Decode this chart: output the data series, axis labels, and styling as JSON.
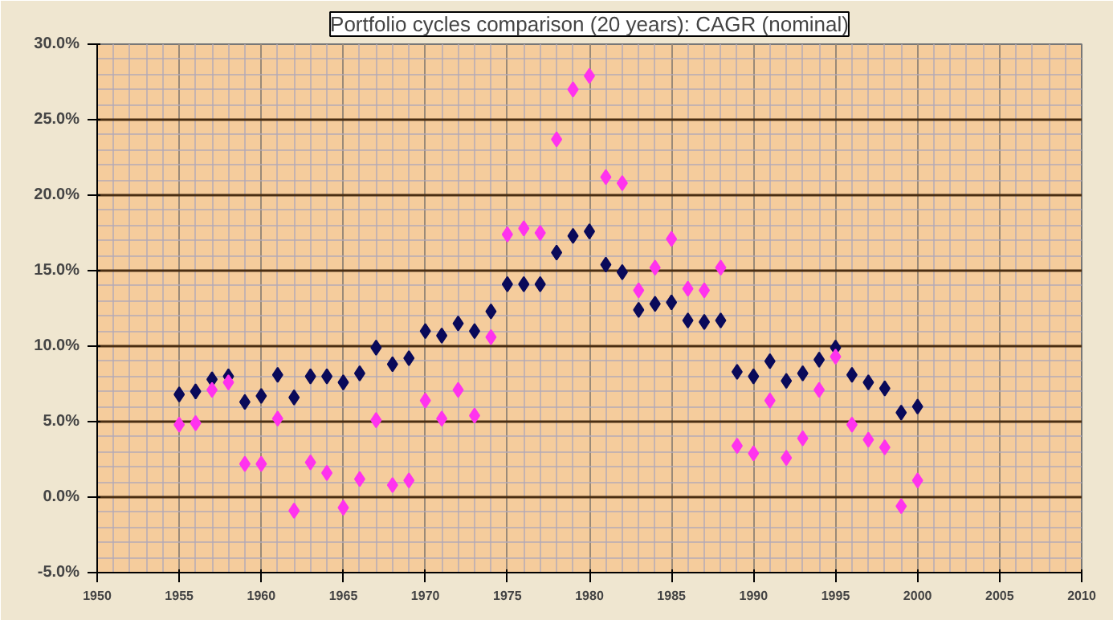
{
  "chart_data": {
    "type": "scatter",
    "title": "Portfolio cycles comparison (20 years): CAGR (nominal)",
    "x": [
      1955,
      1956,
      1957,
      1958,
      1959,
      1960,
      1961,
      1962,
      1963,
      1964,
      1965,
      1966,
      1967,
      1968,
      1969,
      1970,
      1971,
      1972,
      1973,
      1974,
      1975,
      1976,
      1977,
      1978,
      1979,
      1980,
      1981,
      1982,
      1983,
      1984,
      1985,
      1986,
      1987,
      1988,
      1989,
      1990,
      1991,
      1992,
      1993,
      1994,
      1995,
      1996,
      1997,
      1998,
      1999,
      2000
    ],
    "series": [
      {
        "color": "#0a0a5a",
        "values": [
          6.8,
          7.0,
          7.8,
          8.0,
          6.3,
          6.7,
          8.1,
          6.6,
          8.0,
          8.0,
          7.6,
          8.2,
          9.9,
          8.8,
          9.2,
          11.0,
          10.7,
          11.5,
          11.0,
          12.3,
          14.1,
          14.1,
          14.1,
          16.2,
          17.3,
          17.6,
          15.4,
          14.9,
          12.4,
          12.8,
          12.9,
          11.7,
          11.6,
          11.7,
          8.3,
          8.0,
          9.0,
          7.7,
          8.2,
          9.1,
          9.9,
          8.1,
          7.6,
          7.2,
          5.6,
          6.0
        ]
      },
      {
        "color": "#ff33ee",
        "values": [
          4.8,
          4.9,
          7.1,
          7.6,
          2.2,
          2.2,
          5.2,
          -0.9,
          2.3,
          1.6,
          -0.7,
          1.2,
          5.1,
          0.8,
          1.1,
          6.4,
          5.2,
          7.1,
          5.4,
          10.6,
          17.4,
          17.8,
          17.5,
          23.7,
          27.0,
          27.9,
          21.2,
          20.8,
          13.7,
          15.2,
          17.1,
          13.8,
          13.7,
          15.2,
          3.4,
          2.9,
          6.4,
          2.6,
          3.9,
          7.1,
          9.3,
          4.8,
          3.8,
          3.3,
          -0.6,
          1.1
        ]
      }
    ],
    "xlim": [
      1950,
      2010
    ],
    "xticks": [
      1950,
      1955,
      1960,
      1965,
      1970,
      1975,
      1980,
      1985,
      1990,
      1995,
      2000,
      2005,
      2010
    ],
    "ylim": [
      -5,
      30
    ],
    "yticks": [
      {
        "value": -5,
        "label": "-5.0%"
      },
      {
        "value": 0,
        "label": "0.0%"
      },
      {
        "value": 5,
        "label": "5.0%"
      },
      {
        "value": 10,
        "label": "10.0%"
      },
      {
        "value": 15,
        "label": "15.0%"
      },
      {
        "value": 20,
        "label": "20.0%"
      },
      {
        "value": 25,
        "label": "25.0%"
      },
      {
        "value": 30,
        "label": "30.0%"
      }
    ],
    "grid": true,
    "marker": "diamond"
  }
}
